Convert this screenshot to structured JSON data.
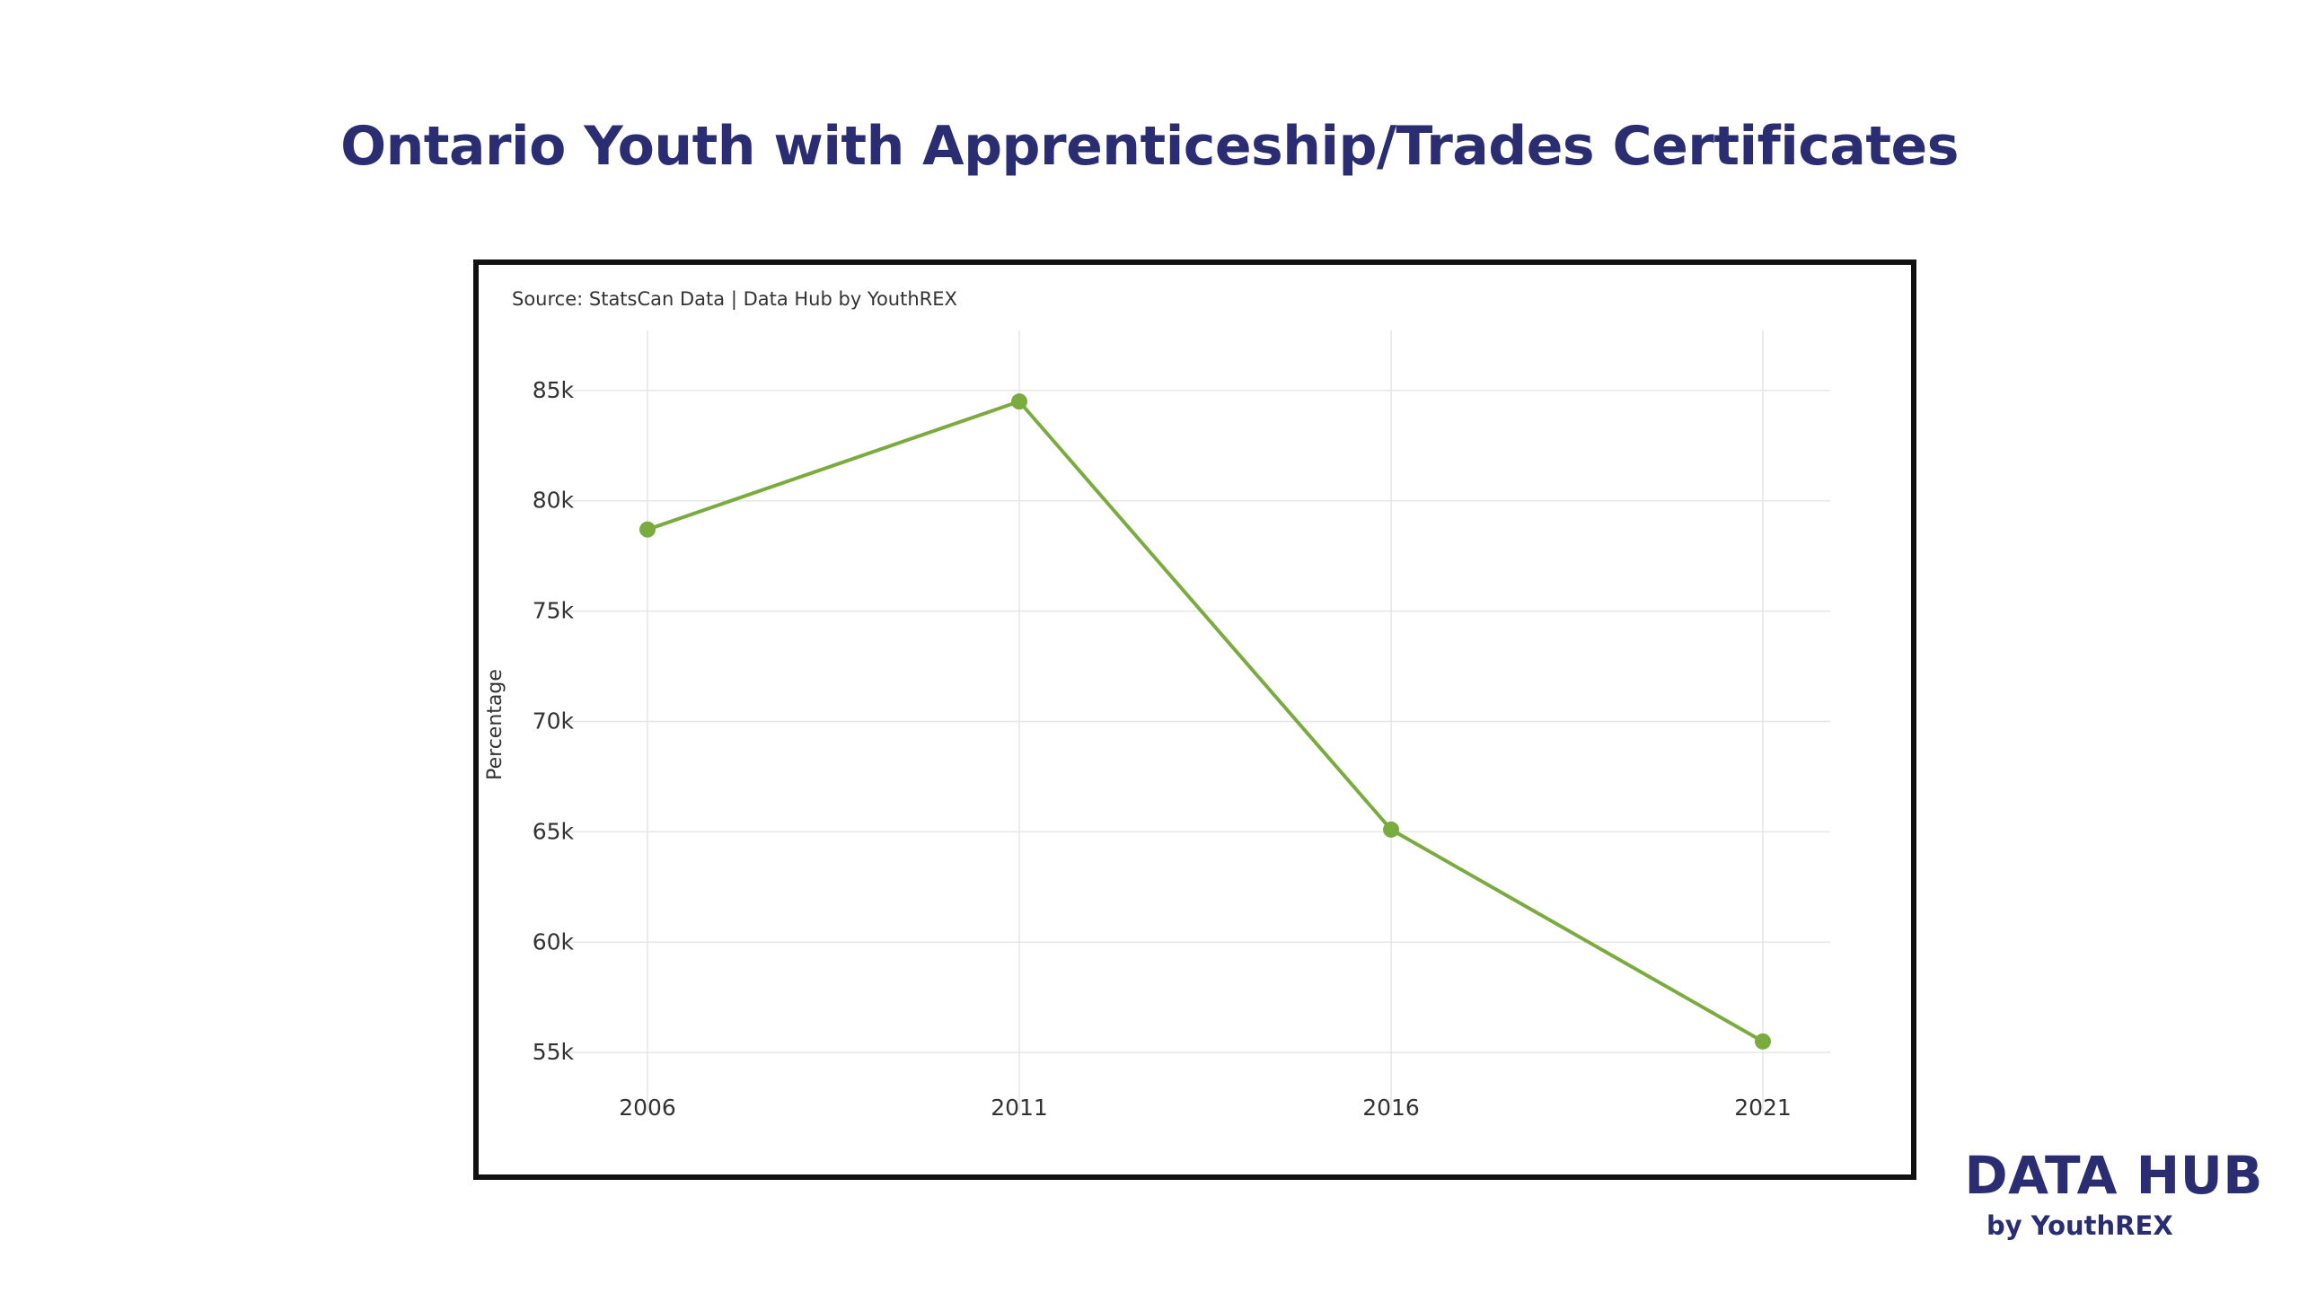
{
  "page": {
    "title": "Ontario Youth with Apprenticeship/Trades Certificates"
  },
  "chart_data": {
    "type": "line",
    "subtitle": "Source: StatsCan Data | Data Hub by YouthREX",
    "ylabel": "Percentage",
    "xlabel": "",
    "x": [
      2006,
      2011,
      2016,
      2021
    ],
    "x_tick_labels": [
      "2006",
      "2011",
      "2016",
      "2021"
    ],
    "series": [
      {
        "values": [
          78700,
          84500,
          65100,
          55500
        ]
      }
    ],
    "ylim": [
      53500,
      86500
    ],
    "y_ticks": [
      55000,
      60000,
      65000,
      70000,
      75000,
      80000,
      85000
    ],
    "y_tick_labels": [
      "55k",
      "60k",
      "65k",
      "70k",
      "75k",
      "80k",
      "85k"
    ],
    "grid": true,
    "legend": "none",
    "colors": {
      "line": "#7aab3f",
      "grid": "#e6e6e6",
      "text": "#333333"
    }
  },
  "brand": {
    "name": "DATA HUB",
    "tagline": "by YouthREX",
    "color": "#2a2d72"
  }
}
